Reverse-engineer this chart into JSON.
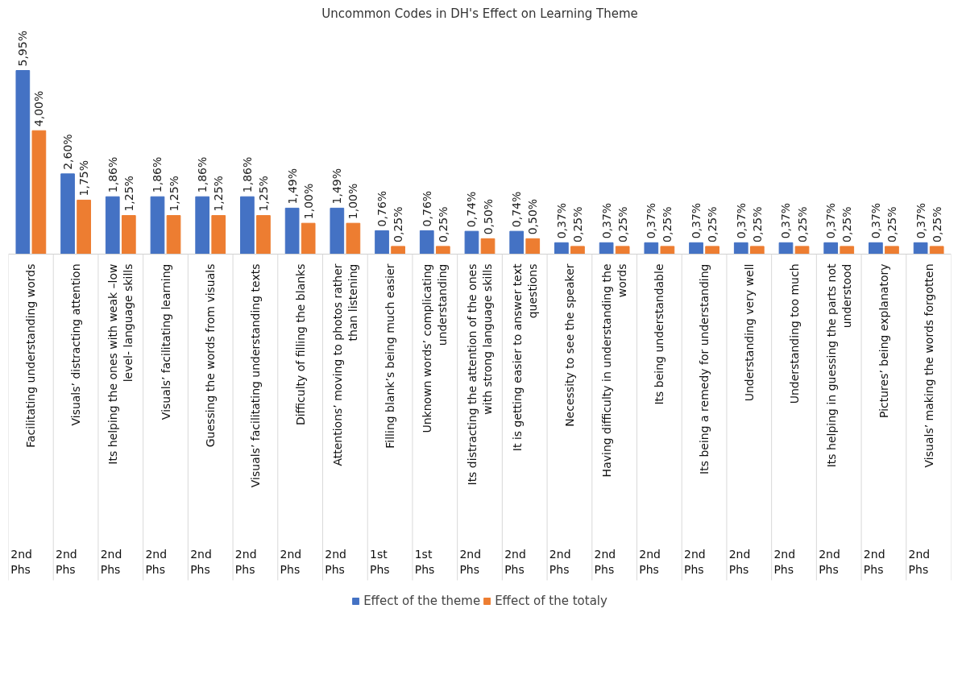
{
  "chart_data": {
    "type": "bar",
    "title": "Uncommon Codes in DH's Effect on Learning Theme",
    "categories": [
      "Facilitating understanding words\n\n2nd Phs",
      "Visuals’ distracting attention\n\n2nd Phs",
      "Its helping the ones with weak –low\nlevel- language skills\n\n2nd Phs",
      "Visuals’ facilitating learning\n\n2nd Phs",
      "Guessing the words from visuals\n\n2nd Phs",
      "Visuals’ facilitating understanding texts\n\n2nd Phs",
      "Difficulty of filling the blanks\n\n2nd Phs",
      "Attentions’ moving to photos rather\nthan listening\n\n2nd Phs",
      "Filling blank’s being much easier\n\n1st Phs",
      "Unknown words’ complicating\nunderstanding\n\n1st Phs",
      "Its distracting the attention of the ones\nwith strong language skills\n\n2nd Phs",
      "It is getting easier to answer text\nquestions\n\n2nd Phs",
      "Necessity to see the speaker\n\n2nd Phs",
      "Having difficulty in understanding the\nwords\n\n2nd Phs",
      "Its being understandable\n\n2nd Phs",
      "Its being a remedy for understanding\n\n2nd Phs",
      "Understanding very well\n\n2nd Phs",
      "Understanding too much\n\n2nd Phs",
      "Its helping in guessing the parts not\nunderstood\n\n2nd Phs",
      "Pictures’ being explanatory\n\n2nd Phs",
      "Visuals’ making the words forgotten\n\n2nd Phs"
    ],
    "series": [
      {
        "name": "Effect of the theme",
        "color": "#4472c4",
        "values": [
          5.95,
          2.6,
          1.86,
          1.86,
          1.86,
          1.86,
          1.49,
          1.49,
          0.76,
          0.76,
          0.74,
          0.74,
          0.37,
          0.37,
          0.37,
          0.37,
          0.37,
          0.37,
          0.37,
          0.37,
          0.37
        ],
        "value_labels": [
          "5,95%",
          "2,60%",
          "1,86%",
          "1,86%",
          "1,86%",
          "1,86%",
          "1,49%",
          "1,49%",
          "0,76%",
          "0,76%",
          "0,74%",
          "0,74%",
          "0,37%",
          "0,37%",
          "0,37%",
          "0,37%",
          "0,37%",
          "0,37%",
          "0,37%",
          "0,37%",
          "0,37%"
        ]
      },
      {
        "name": "Effect of the totaly",
        "color": "#ed7d31",
        "values": [
          4.0,
          1.75,
          1.25,
          1.25,
          1.25,
          1.25,
          1.0,
          1.0,
          0.25,
          0.25,
          0.5,
          0.5,
          0.25,
          0.25,
          0.25,
          0.25,
          0.25,
          0.25,
          0.25,
          0.25,
          0.25
        ],
        "value_labels": [
          "4,00%",
          "1,75%",
          "1,25%",
          "1,25%",
          "1,25%",
          "1,25%",
          "1,00%",
          "1,00%",
          "0,25%",
          "0,25%",
          "0,50%",
          "0,50%",
          "0,25%",
          "0,25%",
          "0,25%",
          "0,25%",
          "0,25%",
          "0,25%",
          "0,25%",
          "0,25%",
          "0,25%"
        ]
      }
    ],
    "legend": "bottom",
    "grid": false
  }
}
